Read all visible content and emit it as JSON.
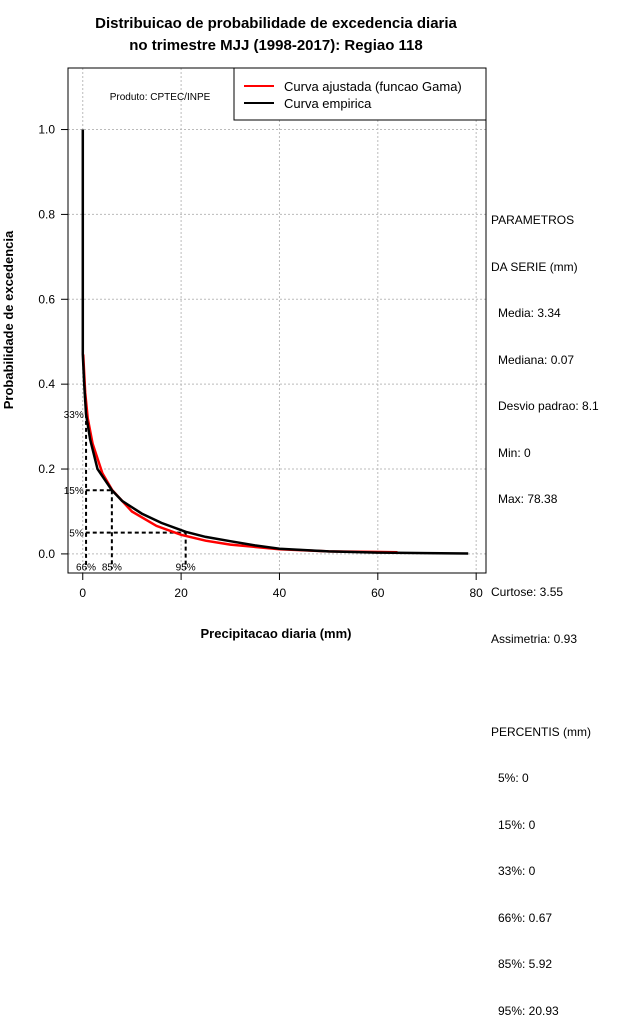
{
  "chart_data": {
    "type": "line",
    "title": [
      "Distribuicao de probabilidade de excedencia diaria",
      "no trimestre MJJ (1998-2017): Regiao 118"
    ],
    "xlabel": "Precipitacao diaria (mm)",
    "ylabel": "Probabilidade de excedencia",
    "xlim": [
      -3,
      82
    ],
    "ylim": [
      -0.045,
      1.145
    ],
    "xticks": [
      0,
      20,
      40,
      60,
      80
    ],
    "yticks": [
      "0.0",
      "0.2",
      "0.4",
      "0.6",
      "0.8",
      "1.0"
    ],
    "grid": true,
    "legend": {
      "position": "top-right",
      "entries": [
        "Curva ajustada (funcao Gama)",
        "Curva empirica"
      ]
    },
    "annotation": "Produto: CPTEC/INPE",
    "series": [
      {
        "name": "Curva ajustada (funcao Gama)",
        "color": "#ff0000",
        "x": [
          0.1,
          0.5,
          1,
          2,
          4,
          6,
          10,
          15,
          20,
          25,
          30,
          40,
          50,
          64
        ],
        "y": [
          0.47,
          0.38,
          0.32,
          0.26,
          0.19,
          0.15,
          0.1,
          0.066,
          0.045,
          0.031,
          0.022,
          0.011,
          0.006,
          0.004
        ]
      },
      {
        "name": "Curva empirica",
        "color": "#000000",
        "x": [
          0,
          0,
          0.3,
          0.67,
          1.5,
          3,
          5.92,
          8,
          12,
          16,
          20.93,
          25,
          30,
          35,
          40,
          50,
          60,
          70,
          78.38
        ],
        "y": [
          1,
          0.47,
          0.4,
          0.33,
          0.27,
          0.2,
          0.15,
          0.125,
          0.095,
          0.073,
          0.052,
          0.04,
          0.03,
          0.02,
          0.012,
          0.006,
          0.003,
          0.002,
          0.001
        ]
      }
    ],
    "percentile_markers": [
      {
        "h_label": "33%",
        "v_label": "66%",
        "x": 0.67,
        "y": 0.33
      },
      {
        "h_label": "15%",
        "v_label": "85%",
        "x": 5.92,
        "y": 0.15
      },
      {
        "h_label": "5%",
        "v_label": "95%",
        "x": 20.93,
        "y": 0.05
      }
    ]
  },
  "stats": {
    "header1": "PARAMETROS",
    "header2": "DA SERIE (mm)",
    "media": "Media: 3.34",
    "mediana": "Mediana: 0.07",
    "desvio": "Desvio padrao: 8.1",
    "min": "Min: 0",
    "max": "Max: 78.38",
    "curtose": "Curtose: 3.55",
    "assimetria": "Assimetria: 0.93",
    "perc_header": "PERCENTIS (mm)",
    "p5": "5%: 0",
    "p15": "15%: 0",
    "p33": "33%: 0",
    "p66": "66%: 0.67",
    "p85": "85%: 5.92",
    "p95": "95%: 20.93"
  }
}
